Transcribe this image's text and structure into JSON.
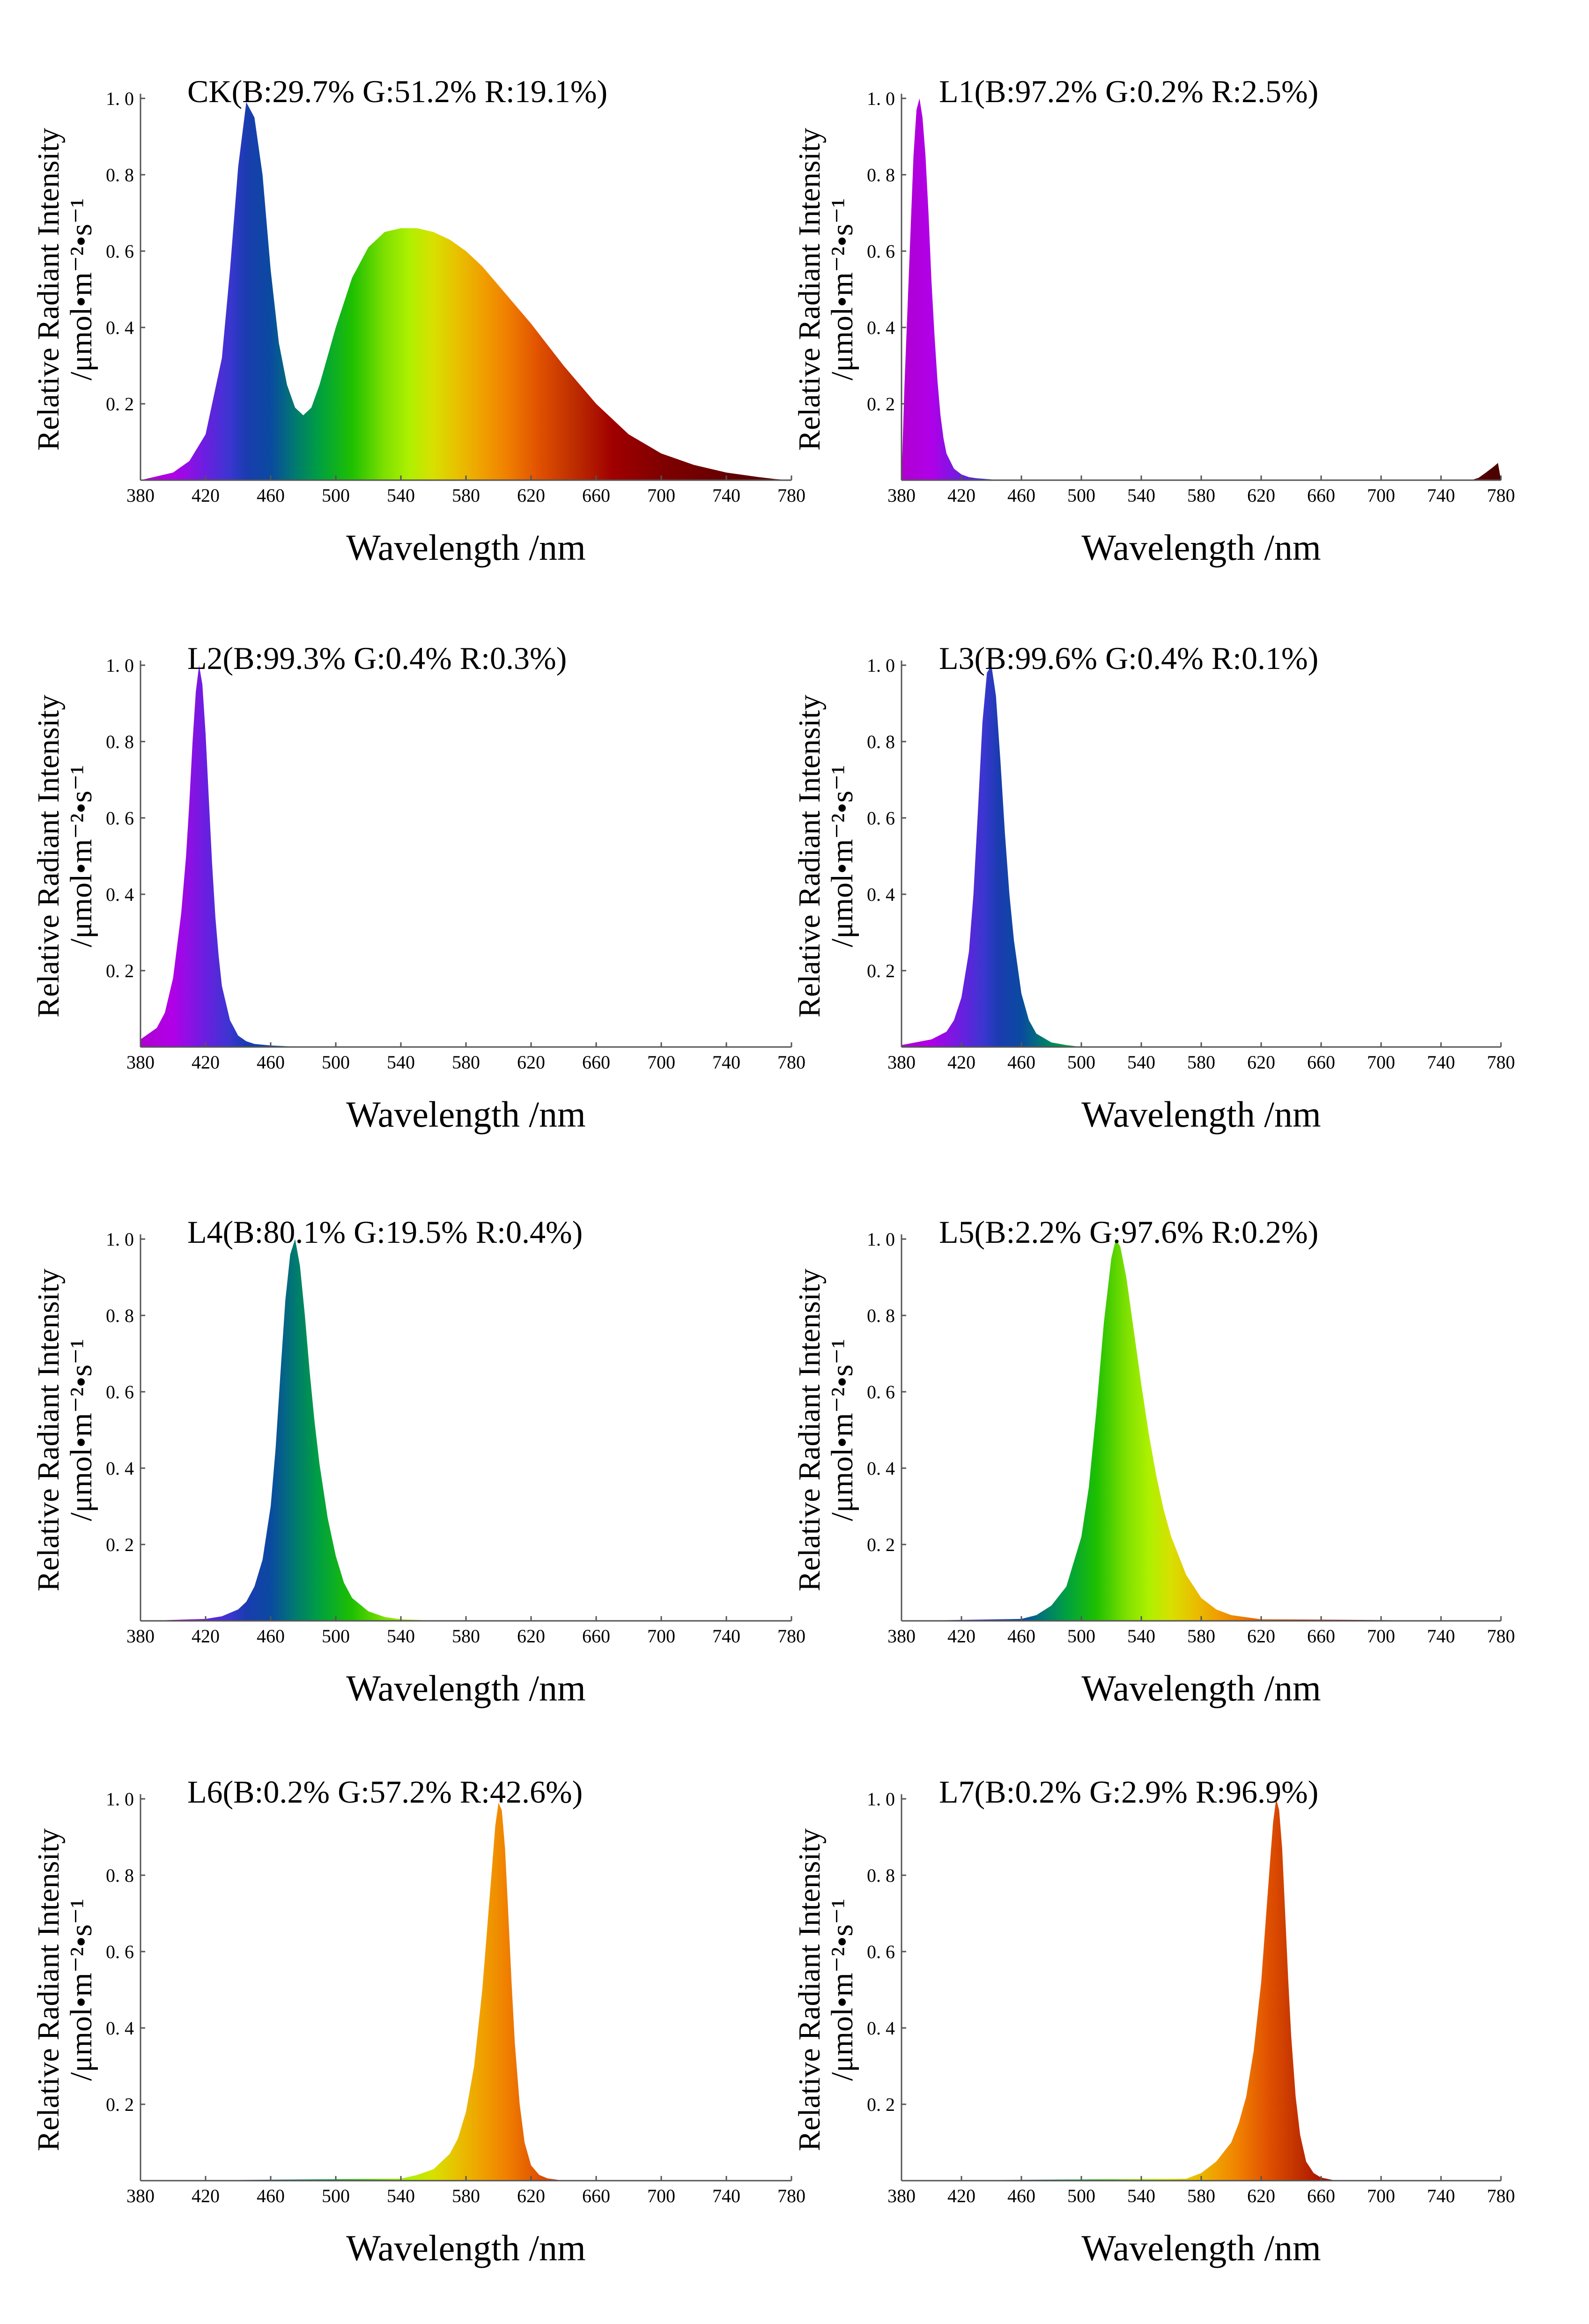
{
  "figure": {
    "x_label": "Wavelength /nm",
    "y_label_line1": "Relative Radiant Intensity",
    "y_label_line2": "/μmol•m⁻²•s⁻¹"
  },
  "chart_data": [
    {
      "id": "CK",
      "type": "area",
      "title": "CK(B:29.7% G:51.2% R:19.1%)",
      "xlim": [
        380,
        780
      ],
      "ylim": [
        0,
        1
      ],
      "x_ticks": [
        380,
        420,
        460,
        500,
        540,
        580,
        620,
        660,
        700,
        740,
        780
      ],
      "y_ticks": [
        0.2,
        0.4,
        0.6,
        0.8,
        1.0
      ],
      "y_tick_labels": [
        "0. 2",
        "0. 4",
        "0. 6",
        "0. 8",
        "1. 0"
      ],
      "x": [
        380,
        400,
        410,
        420,
        430,
        435,
        440,
        445,
        450,
        455,
        460,
        465,
        470,
        475,
        480,
        485,
        490,
        500,
        510,
        520,
        530,
        540,
        550,
        560,
        570,
        580,
        590,
        600,
        620,
        640,
        660,
        680,
        700,
        720,
        740,
        760,
        770,
        780
      ],
      "y": [
        0.0,
        0.02,
        0.05,
        0.12,
        0.32,
        0.55,
        0.82,
        0.99,
        0.95,
        0.8,
        0.55,
        0.36,
        0.25,
        0.19,
        0.17,
        0.19,
        0.25,
        0.4,
        0.53,
        0.61,
        0.65,
        0.66,
        0.66,
        0.65,
        0.63,
        0.6,
        0.56,
        0.51,
        0.41,
        0.3,
        0.2,
        0.12,
        0.07,
        0.04,
        0.02,
        0.008,
        0.003,
        0.0
      ]
    },
    {
      "id": "L1",
      "type": "area",
      "title": "L1(B:97.2% G:0.2% R:2.5%)",
      "xlim": [
        380,
        780
      ],
      "ylim": [
        0,
        1
      ],
      "x_ticks": [
        380,
        420,
        460,
        500,
        540,
        580,
        620,
        660,
        700,
        740,
        780
      ],
      "y_ticks": [
        0.2,
        0.4,
        0.6,
        0.8,
        1.0
      ],
      "y_tick_labels": [
        "0. 2",
        "0. 4",
        "0. 6",
        "0. 8",
        "1. 0"
      ],
      "x": [
        380,
        382,
        384,
        386,
        388,
        390,
        392,
        394,
        396,
        398,
        400,
        402,
        404,
        406,
        408,
        410,
        415,
        420,
        425,
        430,
        440,
        460,
        500,
        760,
        765,
        770,
        775,
        778,
        780
      ],
      "y": [
        0.0,
        0.25,
        0.45,
        0.65,
        0.85,
        0.97,
        1.0,
        0.95,
        0.85,
        0.7,
        0.52,
        0.38,
        0.26,
        0.17,
        0.11,
        0.07,
        0.03,
        0.015,
        0.008,
        0.005,
        0.002,
        0.0,
        0.0,
        0.0,
        0.006,
        0.02,
        0.035,
        0.045,
        0.0
      ]
    },
    {
      "id": "L2",
      "type": "area",
      "title": "L2(B:99.3% G:0.4% R:0.3%)",
      "xlim": [
        380,
        780
      ],
      "ylim": [
        0,
        1
      ],
      "x_ticks": [
        380,
        420,
        460,
        500,
        540,
        580,
        620,
        660,
        700,
        740,
        780
      ],
      "y_ticks": [
        0.2,
        0.4,
        0.6,
        0.8,
        1.0
      ],
      "y_tick_labels": [
        "0. 2",
        "0. 4",
        "0. 6",
        "0. 8",
        "1. 0"
      ],
      "x": [
        380,
        390,
        395,
        400,
        405,
        408,
        410,
        412,
        414,
        416,
        418,
        420,
        422,
        424,
        426,
        428,
        430,
        435,
        440,
        445,
        450,
        460,
        470,
        500,
        780
      ],
      "y": [
        0.02,
        0.05,
        0.09,
        0.18,
        0.35,
        0.5,
        0.64,
        0.8,
        0.93,
        1.0,
        0.95,
        0.82,
        0.65,
        0.48,
        0.34,
        0.24,
        0.16,
        0.07,
        0.03,
        0.015,
        0.008,
        0.004,
        0.002,
        0.0,
        0.0
      ]
    },
    {
      "id": "L3",
      "type": "area",
      "title": "L3(B:99.6% G:0.4% R:0.1%)",
      "xlim": [
        380,
        780
      ],
      "ylim": [
        0,
        1
      ],
      "x_ticks": [
        380,
        420,
        460,
        500,
        540,
        580,
        620,
        660,
        700,
        740,
        780
      ],
      "y_ticks": [
        0.2,
        0.4,
        0.6,
        0.8,
        1.0
      ],
      "y_tick_labels": [
        "0. 2",
        "0. 4",
        "0. 6",
        "0. 8",
        "1. 0"
      ],
      "x": [
        380,
        400,
        410,
        415,
        420,
        425,
        428,
        431,
        434,
        437,
        440,
        443,
        446,
        449,
        452,
        455,
        460,
        465,
        470,
        480,
        490,
        500,
        780
      ],
      "y": [
        0.005,
        0.02,
        0.04,
        0.07,
        0.13,
        0.25,
        0.4,
        0.62,
        0.85,
        0.98,
        1.0,
        0.92,
        0.75,
        0.56,
        0.4,
        0.28,
        0.14,
        0.07,
        0.035,
        0.012,
        0.005,
        0.0,
        0.0
      ]
    },
    {
      "id": "L4",
      "type": "area",
      "title": "L4(B:80.1% G:19.5% R:0.4%)",
      "xlim": [
        380,
        780
      ],
      "ylim": [
        0,
        1
      ],
      "x_ticks": [
        380,
        420,
        460,
        500,
        540,
        580,
        620,
        660,
        700,
        740,
        780
      ],
      "y_ticks": [
        0.2,
        0.4,
        0.6,
        0.8,
        1.0
      ],
      "y_tick_labels": [
        "0. 2",
        "0. 4",
        "0. 6",
        "0. 8",
        "1. 0"
      ],
      "x": [
        380,
        420,
        430,
        440,
        445,
        450,
        455,
        460,
        463,
        466,
        469,
        472,
        475,
        478,
        481,
        484,
        487,
        490,
        495,
        500,
        505,
        510,
        520,
        530,
        540,
        560,
        580,
        780
      ],
      "y": [
        0.0,
        0.005,
        0.012,
        0.03,
        0.05,
        0.09,
        0.16,
        0.3,
        0.45,
        0.65,
        0.84,
        0.96,
        1.0,
        0.93,
        0.8,
        0.65,
        0.52,
        0.41,
        0.27,
        0.17,
        0.1,
        0.06,
        0.025,
        0.01,
        0.004,
        0.001,
        0.0,
        0.0
      ]
    },
    {
      "id": "L5",
      "type": "area",
      "title": "L5(B:2.2% G:97.6% R:0.2%)",
      "xlim": [
        380,
        780
      ],
      "ylim": [
        0,
        1
      ],
      "x_ticks": [
        380,
        420,
        460,
        500,
        540,
        580,
        620,
        660,
        700,
        740,
        780
      ],
      "y_ticks": [
        0.2,
        0.4,
        0.6,
        0.8,
        1.0
      ],
      "y_tick_labels": [
        "0. 2",
        "0. 4",
        "0. 6",
        "0. 8",
        "1. 0"
      ],
      "x": [
        380,
        460,
        470,
        480,
        490,
        500,
        505,
        510,
        515,
        520,
        523,
        526,
        530,
        535,
        540,
        545,
        550,
        555,
        560,
        570,
        580,
        590,
        600,
        620,
        780
      ],
      "y": [
        0.0,
        0.005,
        0.015,
        0.04,
        0.09,
        0.22,
        0.35,
        0.55,
        0.78,
        0.95,
        1.0,
        0.98,
        0.9,
        0.76,
        0.62,
        0.49,
        0.38,
        0.29,
        0.22,
        0.12,
        0.06,
        0.03,
        0.015,
        0.004,
        0.0
      ]
    },
    {
      "id": "L6",
      "type": "area",
      "title": "L6(B:0.2% G:57.2% R:42.6%)",
      "xlim": [
        380,
        780
      ],
      "ylim": [
        0,
        1
      ],
      "x_ticks": [
        380,
        420,
        460,
        500,
        540,
        580,
        620,
        660,
        700,
        740,
        780
      ],
      "y_ticks": [
        0.2,
        0.4,
        0.6,
        0.8,
        1.0
      ],
      "y_tick_labels": [
        "0. 2",
        "0. 4",
        "0. 6",
        "0. 8",
        "1. 0"
      ],
      "x": [
        380,
        540,
        550,
        560,
        570,
        575,
        580,
        585,
        590,
        593,
        596,
        598,
        600,
        602,
        604,
        606,
        608,
        610,
        613,
        616,
        620,
        625,
        630,
        640,
        780
      ],
      "y": [
        0.0,
        0.005,
        0.015,
        0.03,
        0.07,
        0.11,
        0.18,
        0.3,
        0.5,
        0.66,
        0.82,
        0.93,
        0.99,
        0.97,
        0.87,
        0.7,
        0.52,
        0.36,
        0.2,
        0.1,
        0.04,
        0.015,
        0.006,
        0.0,
        0.0
      ]
    },
    {
      "id": "L7",
      "type": "area",
      "title": "L7(B:0.2% G:2.9% R:96.9%)",
      "xlim": [
        380,
        780
      ],
      "ylim": [
        0,
        1
      ],
      "x_ticks": [
        380,
        420,
        460,
        500,
        540,
        580,
        620,
        660,
        700,
        740,
        780
      ],
      "y_ticks": [
        0.2,
        0.4,
        0.6,
        0.8,
        1.0
      ],
      "y_tick_labels": [
        "0. 2",
        "0. 4",
        "0. 6",
        "0. 8",
        "1. 0"
      ],
      "x": [
        380,
        570,
        580,
        590,
        600,
        605,
        610,
        615,
        620,
        623,
        626,
        628,
        630,
        632,
        634,
        636,
        638,
        640,
        643,
        646,
        650,
        655,
        660,
        670,
        780
      ],
      "y": [
        0.0,
        0.005,
        0.02,
        0.05,
        0.1,
        0.15,
        0.22,
        0.34,
        0.52,
        0.68,
        0.84,
        0.94,
        1.0,
        0.97,
        0.87,
        0.7,
        0.53,
        0.38,
        0.22,
        0.12,
        0.05,
        0.02,
        0.008,
        0.0,
        0.0
      ]
    }
  ]
}
